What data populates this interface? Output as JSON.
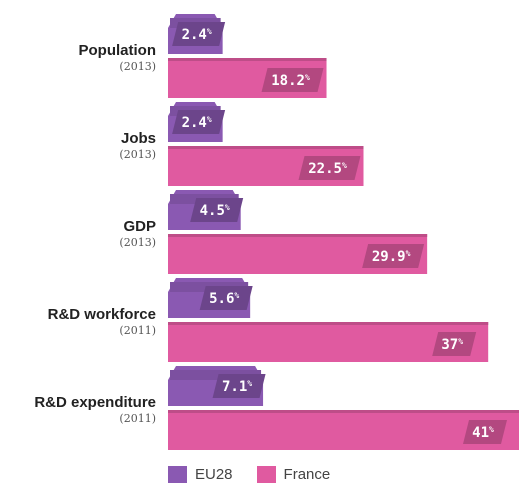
{
  "chart_data": {
    "type": "bar",
    "orientation": "horizontal",
    "unit": "%",
    "categories": [
      {
        "label": "Population",
        "year": "(2013)"
      },
      {
        "label": "Jobs",
        "year": "(2013)"
      },
      {
        "label": "GDP",
        "year": "(2013)"
      },
      {
        "label": "R&D workforce",
        "year": "(2011)"
      },
      {
        "label": "R&D expenditure",
        "year": "(2011)"
      }
    ],
    "series": [
      {
        "name": "EU28",
        "color": "#8a59b2",
        "values": [
          2.4,
          2.4,
          4.5,
          5.6,
          7.1
        ],
        "labels": [
          "2.4",
          "2.4",
          "4.5",
          "5.6",
          "7.1"
        ]
      },
      {
        "name": "France",
        "color": "#e05aa0",
        "values": [
          18.2,
          22.5,
          29.9,
          37,
          41
        ],
        "labels": [
          "18.2",
          "22.5",
          "29.9",
          "37",
          "41"
        ]
      }
    ],
    "legend": {
      "position": "bottom-left"
    },
    "grid": false
  }
}
